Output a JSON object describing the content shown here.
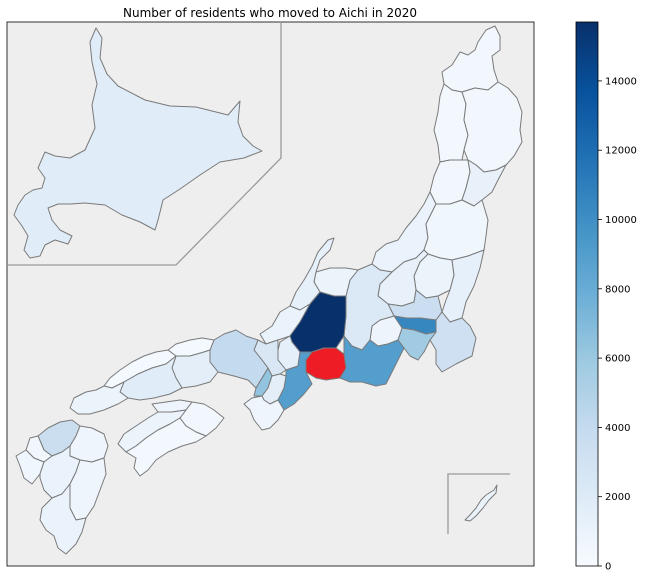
{
  "chart_data": {
    "type": "choropleth",
    "title": "Number of residents who moved to Aichi in 2020",
    "colorbar": {
      "min": 0,
      "max": 15700,
      "ticks": [
        0,
        2000,
        4000,
        6000,
        8000,
        10000,
        12000,
        14000
      ],
      "tick_labels": [
        "0",
        "2000",
        "4000",
        "6000",
        "8000",
        "10000",
        "12000",
        "14000"
      ],
      "colormap": "Blues"
    },
    "highlight_color": "#ee1c25",
    "background_color": "#eeeeee",
    "highlighted_region": "Aichi",
    "regions": [
      {
        "id": "hokkaido",
        "value": 1800
      },
      {
        "id": "aomori",
        "value": 500
      },
      {
        "id": "akita",
        "value": 400
      },
      {
        "id": "iwate",
        "value": 450
      },
      {
        "id": "yamagata",
        "value": 450
      },
      {
        "id": "miyagi",
        "value": 1200
      },
      {
        "id": "niigata",
        "value": 1000
      },
      {
        "id": "fukushima",
        "value": 650
      },
      {
        "id": "tochigi",
        "value": 950
      },
      {
        "id": "ibaraki",
        "value": 1300
      },
      {
        "id": "gunma",
        "value": 1200
      },
      {
        "id": "saitama",
        "value": 3500
      },
      {
        "id": "tokyo",
        "value": 10500
      },
      {
        "id": "chiba",
        "value": 3300
      },
      {
        "id": "kanagawa",
        "value": 5800
      },
      {
        "id": "yamanashi",
        "value": 800
      },
      {
        "id": "nagano",
        "value": 2200
      },
      {
        "id": "toyama",
        "value": 900
      },
      {
        "id": "ishikawa",
        "value": 1300
      },
      {
        "id": "fukui",
        "value": 1000
      },
      {
        "id": "gifu",
        "value": 15700
      },
      {
        "id": "shizuoka",
        "value": 9000
      },
      {
        "id": "aichi",
        "value": null
      },
      {
        "id": "mie",
        "value": 9000
      },
      {
        "id": "shiga",
        "value": 1500
      },
      {
        "id": "kyoto",
        "value": 2400
      },
      {
        "id": "osaka",
        "value": 6300
      },
      {
        "id": "nara",
        "value": 1600
      },
      {
        "id": "wakayama",
        "value": 700
      },
      {
        "id": "hyogo",
        "value": 4000
      },
      {
        "id": "tottori",
        "value": 300
      },
      {
        "id": "shimane",
        "value": 300
      },
      {
        "id": "okayama",
        "value": 1600
      },
      {
        "id": "hiroshima",
        "value": 1800
      },
      {
        "id": "yamaguchi",
        "value": 900
      },
      {
        "id": "tokushima",
        "value": 500
      },
      {
        "id": "kagawa",
        "value": 800
      },
      {
        "id": "ehime",
        "value": 900
      },
      {
        "id": "kochi",
        "value": 400
      },
      {
        "id": "fukuoka",
        "value": 3600
      },
      {
        "id": "saga",
        "value": 500
      },
      {
        "id": "nagasaki",
        "value": 600
      },
      {
        "id": "kumamoto",
        "value": 1000
      },
      {
        "id": "oita",
        "value": 700
      },
      {
        "id": "miyazaki",
        "value": 700
      },
      {
        "id": "kagoshima",
        "value": 1000
      },
      {
        "id": "okinawa",
        "value": 1000
      }
    ]
  }
}
